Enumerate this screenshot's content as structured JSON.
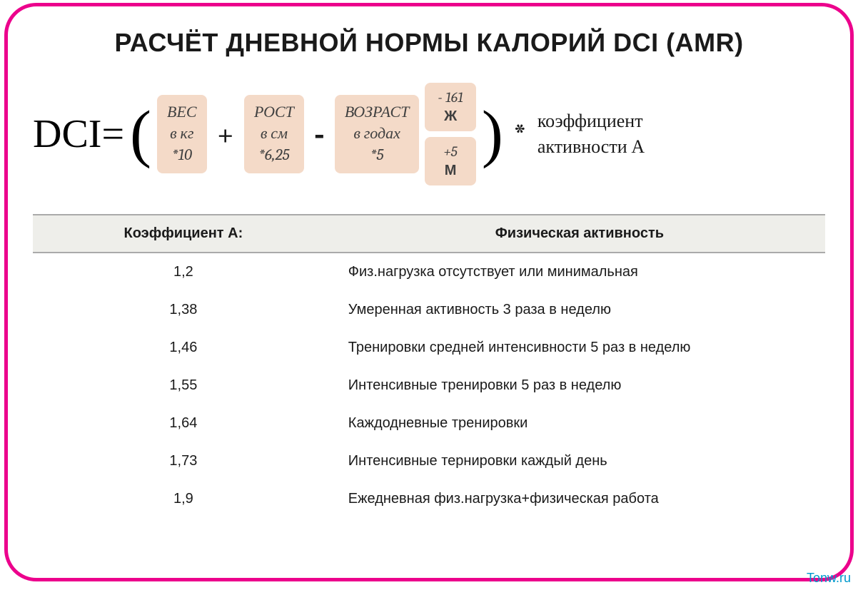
{
  "title": "РАСЧЁТ ДНЕВНОЙ НОРМЫ КАЛОРИЙ DCI (AMR)",
  "formula": {
    "lhs": "DCI=",
    "open_paren": "(",
    "close_paren": ")",
    "plus": "+",
    "minus": "-",
    "asterisk": "*",
    "weight": {
      "l1": "ВЕС",
      "l2": "в кг",
      "l3": "*10"
    },
    "height": {
      "l1": "РОСТ",
      "l2": "в см",
      "l3": "*6,25"
    },
    "age": {
      "l1": "ВОЗРАСТ",
      "l2": "в годах",
      "l3": "*5"
    },
    "female": {
      "val": "- 161",
      "g": "Ж"
    },
    "male": {
      "val": "+5",
      "g": "М"
    },
    "coef": {
      "l1": "коэффициент",
      "l2": "активности А"
    }
  },
  "table": {
    "headers": {
      "col1": "Коэффициент А:",
      "col2": "Физическая активность"
    },
    "header_bg": "#eeeeea",
    "rows": [
      {
        "coef": "1,2",
        "desc": "Физ.нагрузка отсутствует или минимальная"
      },
      {
        "coef": "1,38",
        "desc": "Умеренная активность 3 раза в неделю"
      },
      {
        "coef": "1,46",
        "desc": "Тренировки средней интенсивности 5 раз  в неделю"
      },
      {
        "coef": "1,55",
        "desc": "Интенсивные тренировки 5 раз в неделю"
      },
      {
        "coef": "1,64",
        "desc": "Каждодневные тренировки"
      },
      {
        "coef": "1,73",
        "desc": "Интенсивные тернировки каждый день"
      },
      {
        "coef": "1,9",
        "desc": "Ежедневная физ.нагрузка+физическая работа"
      }
    ]
  },
  "colors": {
    "border": "#ec008c",
    "box_bg": "#f4dac8",
    "text": "#1a1a1a",
    "watermark": "#0099cc"
  },
  "watermark": "Tonw.ru"
}
